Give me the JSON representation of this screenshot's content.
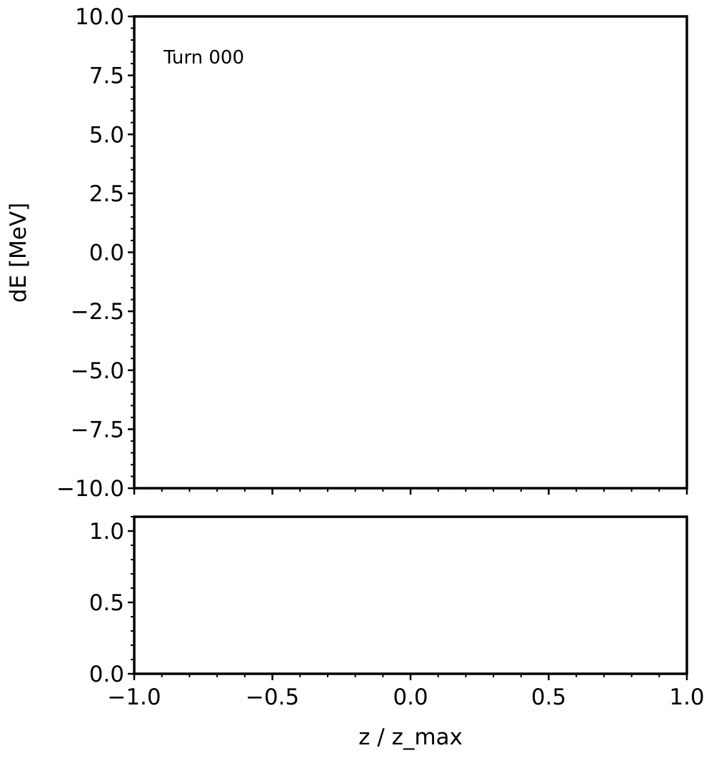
{
  "chart_data": [
    {
      "type": "scatter",
      "title": "",
      "annotation": "Turn 000",
      "xlabel": "",
      "ylabel": "dE [MeV]",
      "xlim": [
        -1.0,
        1.0
      ],
      "ylim": [
        -10.0,
        10.0
      ],
      "yticks": [
        "10.0",
        "7.5",
        "5.0",
        "2.5",
        "0.0",
        "−2.5",
        "−5.0",
        "−7.5",
        "−10.0"
      ],
      "grid": false,
      "series": []
    },
    {
      "type": "line",
      "title": "",
      "xlabel": "z / z_max",
      "ylabel": "",
      "xlim": [
        -1.0,
        1.0
      ],
      "ylim": [
        0.0,
        1.1
      ],
      "xticks": [
        "−1.0",
        "−0.5",
        "0.0",
        "0.5",
        "1.0"
      ],
      "yticks": [
        "1.0",
        "0.5",
        "0.0"
      ],
      "grid": false,
      "series": []
    }
  ]
}
